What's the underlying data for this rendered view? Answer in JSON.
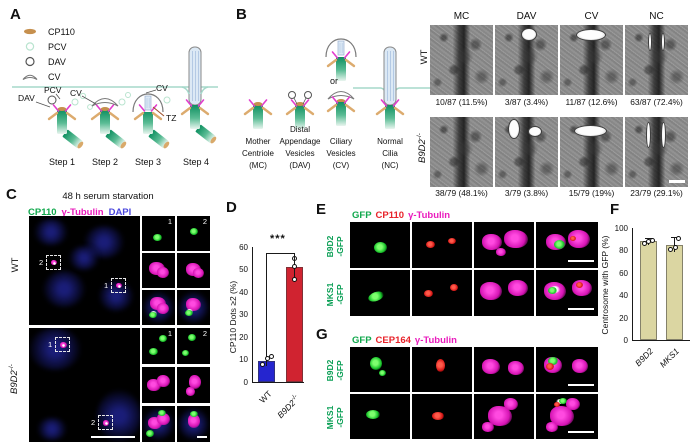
{
  "panelA": {
    "label": "A",
    "legend": [
      {
        "icon": "cp110-oval-icon",
        "label": "CP110"
      },
      {
        "icon": "pcv-circle-icon",
        "label": "PCV"
      },
      {
        "icon": "dav-circle-icon",
        "label": "DAV"
      },
      {
        "icon": "cv-crescent-icon",
        "label": "CV"
      }
    ],
    "annotations": {
      "dav": "DAV",
      "pcv": "PCV",
      "cv_a": "CV",
      "cv_b": "CV",
      "tz": "TZ"
    },
    "steps": [
      "Step 1",
      "Step 2",
      "Step 3",
      "Step 4"
    ]
  },
  "panelB": {
    "label": "B",
    "or_label": "or",
    "stages": [
      {
        "lines": [
          "Mother",
          "Centriole",
          "(MC)"
        ]
      },
      {
        "lines": [
          "Distal",
          "Appendage",
          "Vesicles",
          "(DAV)"
        ]
      },
      {
        "lines": [
          "Ciliary",
          "Vesicles",
          "(CV)"
        ]
      },
      {
        "lines": [
          "Normal",
          "Cilia",
          "(NC)"
        ]
      }
    ]
  },
  "em": {
    "col_headers": [
      "MC",
      "DAV",
      "CV",
      "NC"
    ],
    "rows": [
      {
        "gene": "WT",
        "sup": "",
        "captions": [
          "10/87 (11.5%)",
          "3/87 (3.4%)",
          "11/87 (12.6%)",
          "63/87 (72.4%)"
        ]
      },
      {
        "gene": "B9D2",
        "sup": "-/-",
        "captions": [
          "38/79 (48.1%)",
          "3/79 (3.8%)",
          "15/79 (19%)",
          "23/79 (29.1%)"
        ]
      }
    ]
  },
  "panelC": {
    "label": "C",
    "title": "48 h serum starvation",
    "stains": [
      {
        "label": "CP110",
        "color": "#10a84c"
      },
      {
        "label": "γ-Tubulin",
        "color": "#ea1bbd"
      },
      {
        "label": "DAPI",
        "color": "#4a46dd"
      }
    ],
    "rows": [
      {
        "gene": "WT",
        "sup": "",
        "boxes": [
          "2",
          "1"
        ],
        "insets": [
          "1",
          "2"
        ]
      },
      {
        "gene": "B9D2",
        "sup": "-/-",
        "boxes": [
          "1",
          "2"
        ],
        "insets": [
          "1",
          "2"
        ]
      }
    ]
  },
  "panelD": {
    "label": "D",
    "significance": "***"
  },
  "panelE": {
    "label": "E",
    "title": [
      {
        "label": "GFP",
        "color": "#10a84c"
      },
      {
        "label": "CP110",
        "color": "#e8232a"
      },
      {
        "label": "γ-Tubulin",
        "color": "#ea1bbd"
      }
    ],
    "rows": [
      {
        "gene": "B9D2",
        "tag": "-GFP"
      },
      {
        "gene": "MKS1",
        "tag": "-GFP"
      }
    ]
  },
  "panelF": {
    "label": "F"
  },
  "panelG": {
    "label": "G",
    "title": [
      {
        "label": "GFP",
        "color": "#10a84c"
      },
      {
        "label": "CEP164",
        "color": "#e8232a"
      },
      {
        "label": "γ-Tubulin",
        "color": "#ea1bbd"
      }
    ],
    "rows": [
      {
        "gene": "B9D2",
        "tag": "-GFP"
      },
      {
        "gene": "MKS1",
        "tag": "-GFP"
      }
    ]
  },
  "chart_data": [
    {
      "id": "panelD_cp110_dots",
      "type": "bar",
      "ylabel": "CP110 Dots ≥2 (%)",
      "ylim": [
        0,
        60
      ],
      "yticks": [
        "60",
        "50",
        "40",
        "30",
        "20",
        "10",
        "0"
      ],
      "categories": [
        {
          "gene": "WT",
          "sup": ""
        },
        {
          "gene": "B9D2",
          "sup": "-/-"
        }
      ],
      "values": [
        9.5,
        51
      ],
      "points": [
        [
          8,
          10.5,
          11.5
        ],
        [
          46,
          51.5,
          55
        ]
      ],
      "bar_colors": [
        "#2525cf",
        "#d02330"
      ],
      "significance": "***",
      "grid": false,
      "legend": "none"
    },
    {
      "id": "panelF_centrosome_gfp",
      "type": "bar",
      "ylabel": "Centrosome with GFP (%)",
      "ylim": [
        0,
        100
      ],
      "yticks": [
        "100",
        "80",
        "60",
        "40",
        "20",
        "0"
      ],
      "categories": [
        {
          "gene": "B9D2",
          "sup": ""
        },
        {
          "gene": "MKS1",
          "sup": ""
        }
      ],
      "values": [
        88,
        85
      ],
      "points": [
        [
          87,
          88,
          89
        ],
        [
          81,
          83,
          91
        ]
      ],
      "bar_colors": [
        "#dbd6a2",
        "#dbd6a2"
      ],
      "grid": false,
      "legend": "none"
    }
  ]
}
